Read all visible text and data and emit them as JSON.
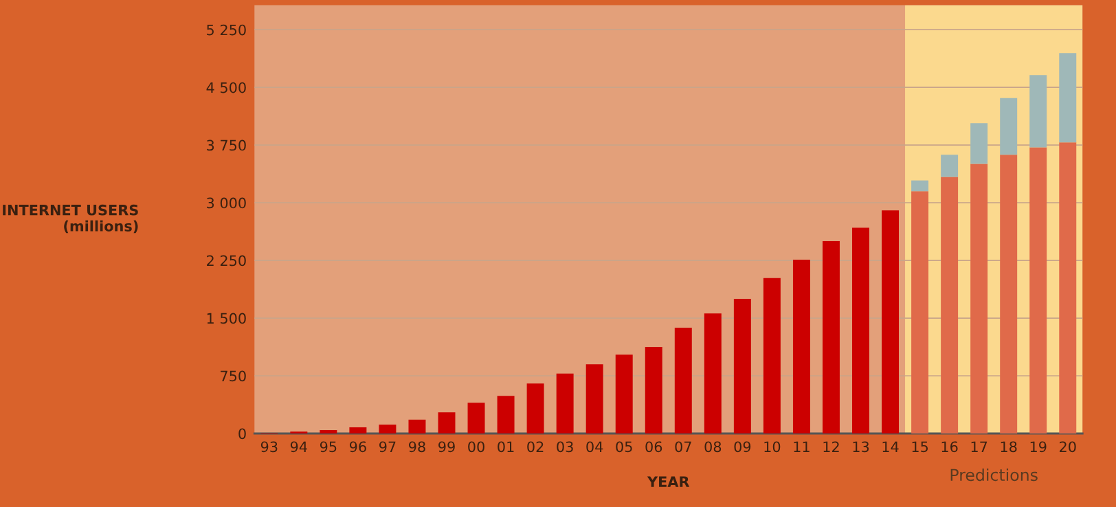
{
  "chart_data": {
    "type": "bar",
    "stacked": true,
    "xlabel": "YEAR",
    "ylabel": "INTERNET USERS\n(millions)",
    "categories": [
      "93",
      "94",
      "95",
      "96",
      "97",
      "98",
      "99",
      "00",
      "01",
      "02",
      "03",
      "04",
      "05",
      "06",
      "07",
      "08",
      "09",
      "10",
      "11",
      "12",
      "13",
      "14",
      "15",
      "16",
      "17",
      "18",
      "19",
      "20"
    ],
    "series": [
      {
        "color": "#cc0000",
        "values": [
          7,
          25,
          45,
          80,
          115,
          180,
          275,
          400,
          490,
          650,
          780,
          900,
          1025,
          1125,
          1375,
          1560,
          1750,
          2020,
          2260,
          2500,
          2675,
          2900,
          null,
          null,
          null,
          null,
          null,
          null
        ]
      },
      {
        "color": "#e06a4a",
        "values": [
          null,
          null,
          null,
          null,
          null,
          null,
          null,
          null,
          null,
          null,
          null,
          null,
          null,
          null,
          null,
          null,
          null,
          null,
          null,
          null,
          null,
          null,
          3150,
          3335,
          3505,
          3625,
          3720,
          3785
        ]
      },
      {
        "color": "#9fb8b8",
        "values": [
          null,
          null,
          null,
          null,
          null,
          null,
          null,
          null,
          null,
          null,
          null,
          null,
          null,
          null,
          null,
          null,
          null,
          null,
          null,
          null,
          null,
          null,
          140,
          290,
          530,
          735,
          940,
          1160
        ]
      }
    ],
    "ylim": [
      0,
      5570
    ],
    "yticks": [
      {
        "value": 0,
        "label": "0"
      },
      {
        "value": 750,
        "label": "750"
      },
      {
        "value": 1500,
        "label": "1 500"
      },
      {
        "value": 2250,
        "label": "2 250"
      },
      {
        "value": 3000,
        "label": "3 000"
      },
      {
        "value": 3750,
        "label": "3 750"
      },
      {
        "value": 4500,
        "label": "4 500"
      },
      {
        "value": 5250,
        "label": "5 250"
      }
    ],
    "grid": "y",
    "bands": [
      {
        "axis": "x",
        "from": "15",
        "to": "20",
        "label": "Predictions",
        "color": "#fbd98e"
      }
    ]
  }
}
